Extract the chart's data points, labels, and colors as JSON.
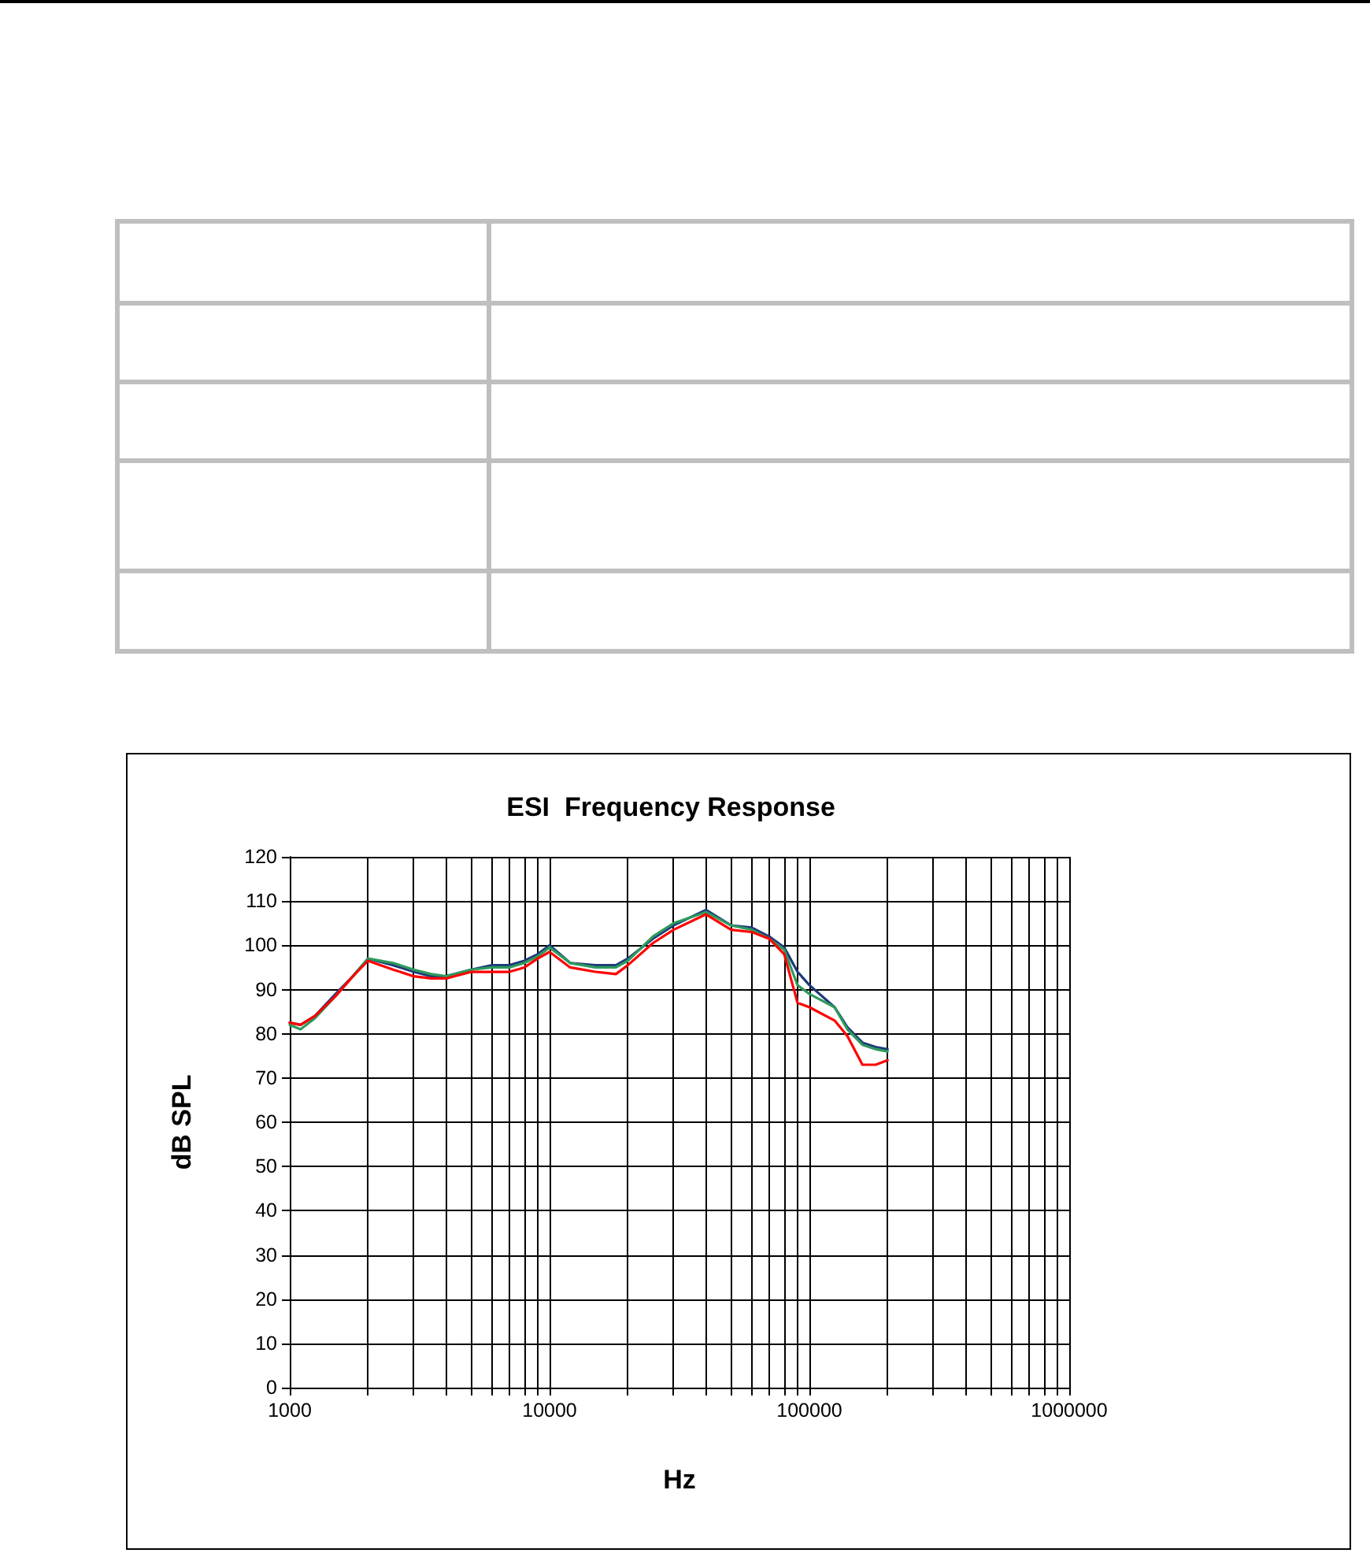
{
  "chart_data": {
    "type": "line",
    "title": "ESI  Frequency Response",
    "xlabel": "Hz",
    "ylabel": "dB SPL",
    "log": "x",
    "grid": true,
    "marker": "none",
    "xlim": [
      1000,
      1000000
    ],
    "xticks": [
      1000,
      {
        "value": 2000,
        "label": null
      },
      {
        "value": 3000,
        "label": null
      },
      {
        "value": 4000,
        "label": null
      },
      {
        "value": 5000,
        "label": null
      },
      {
        "value": 6000,
        "label": null
      },
      {
        "value": 7000,
        "label": null
      },
      {
        "value": 8000,
        "label": null
      },
      {
        "value": 9000,
        "label": null
      },
      10000,
      {
        "value": 20000,
        "label": null
      },
      {
        "value": 30000,
        "label": null
      },
      {
        "value": 40000,
        "label": null
      },
      {
        "value": 50000,
        "label": null
      },
      {
        "value": 60000,
        "label": null
      },
      {
        "value": 70000,
        "label": null
      },
      {
        "value": 80000,
        "label": null
      },
      {
        "value": 90000,
        "label": null
      },
      100000,
      {
        "value": 200000,
        "label": null
      },
      {
        "value": 300000,
        "label": null
      },
      {
        "value": 400000,
        "label": null
      },
      {
        "value": 500000,
        "label": null
      },
      {
        "value": 600000,
        "label": null
      },
      {
        "value": 700000,
        "label": null
      },
      {
        "value": 800000,
        "label": null
      },
      {
        "value": 900000,
        "label": null
      },
      1000000
    ],
    "ylim": [
      0,
      120
    ],
    "yticks": [
      0,
      10,
      20,
      30,
      40,
      50,
      60,
      70,
      80,
      90,
      100,
      110,
      120
    ],
    "x": [
      1000,
      1100,
      1250,
      1500,
      1750,
      2000,
      2500,
      3000,
      3500,
      4000,
      5000,
      6000,
      7000,
      8000,
      9000,
      10000,
      12000,
      15000,
      18000,
      20000,
      25000,
      30000,
      40000,
      50000,
      60000,
      70000,
      80000,
      90000,
      100000,
      125000,
      140000,
      160000,
      180000,
      200000
    ],
    "series": [
      {
        "color": "#1f3a7a",
        "values": [
          82.5,
          82,
          84,
          89,
          93,
          97,
          95.5,
          94,
          93,
          93,
          94.5,
          95.5,
          95.5,
          96.5,
          98,
          100,
          96,
          95.5,
          95.5,
          97,
          101.5,
          104.5,
          108,
          104.5,
          104,
          102,
          99.5,
          94,
          91,
          86,
          81.5,
          78,
          77,
          76.5
        ]
      },
      {
        "color": "#2e9a5c",
        "values": [
          82,
          81,
          83.5,
          88.5,
          93,
          97,
          96,
          94.5,
          93.5,
          93,
          94.5,
          95,
          95,
          96,
          97.5,
          99.5,
          96,
          95,
          95,
          96.5,
          102,
          105,
          107.5,
          104.5,
          103.5,
          101.5,
          99,
          91,
          89,
          86,
          81,
          77.5,
          76.5,
          76
        ]
      },
      {
        "color": "#ff0000",
        "values": [
          82.5,
          82,
          84,
          88.5,
          93,
          96.5,
          94.5,
          93,
          92.5,
          92.5,
          94,
          94,
          94,
          95,
          97,
          98.5,
          95,
          94,
          93.5,
          95.5,
          100.5,
          103.5,
          107,
          103.5,
          103,
          101.5,
          98,
          87,
          86,
          83,
          79.5,
          73,
          73,
          74
        ]
      }
    ]
  }
}
